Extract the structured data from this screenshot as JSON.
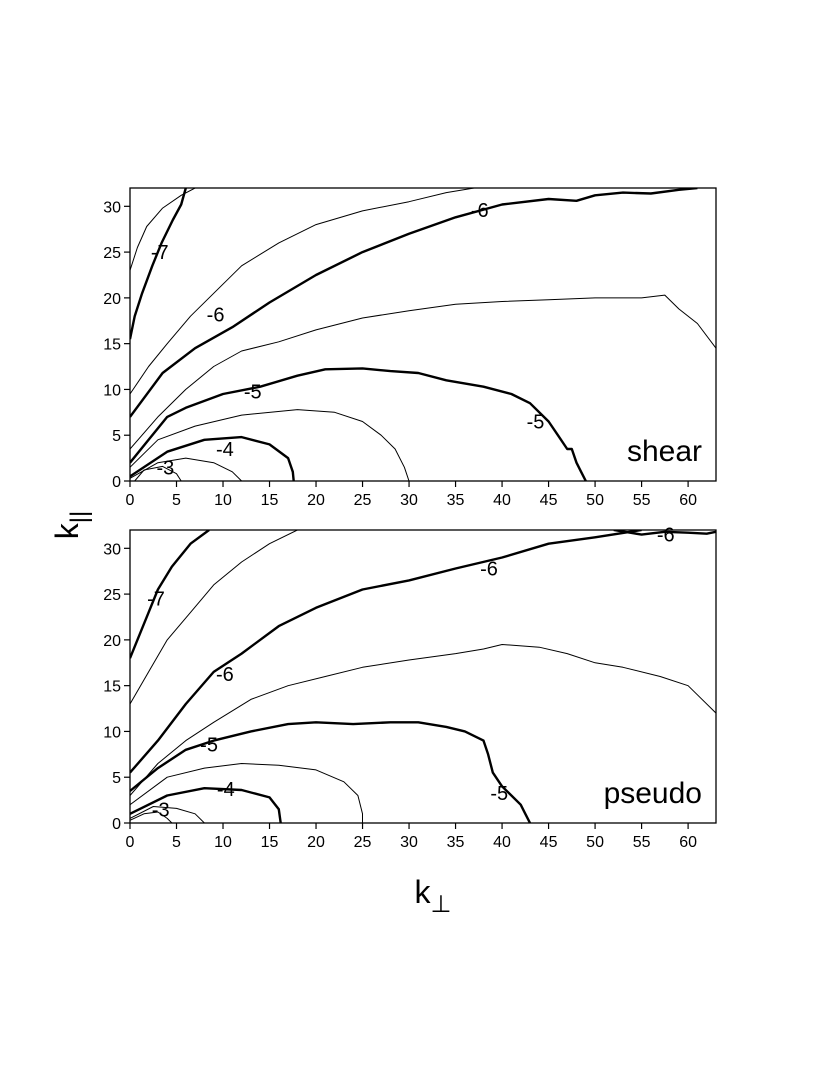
{
  "chart_data": [
    {
      "type": "contour",
      "panel_label": "shear",
      "xlim": [
        0,
        63
      ],
      "ylim": [
        0,
        32
      ],
      "x_ticks": [
        0,
        5,
        10,
        15,
        20,
        25,
        30,
        35,
        40,
        45,
        50,
        55,
        60
      ],
      "y_ticks": [
        0,
        5,
        10,
        15,
        20,
        25,
        30
      ],
      "contour_labels": [
        {
          "text": "-7",
          "x": 3.2,
          "y": 25.0
        },
        {
          "text": "-6",
          "x": 9.2,
          "y": 18.2
        },
        {
          "text": "-6",
          "x": 37.6,
          "y": 29.6
        },
        {
          "text": "-5",
          "x": 13.2,
          "y": 9.8
        },
        {
          "text": "-5",
          "x": 43.6,
          "y": 6.5
        },
        {
          "text": "-4",
          "x": 10.2,
          "y": 3.5
        },
        {
          "text": "-3",
          "x": 3.8,
          "y": 1.5
        }
      ],
      "contours": [
        {
          "level": "-7",
          "bold": false,
          "points": [
            [
              0,
              23
            ],
            [
              0.8,
              25.5
            ],
            [
              1.8,
              27.8
            ],
            [
              3.5,
              29.8
            ],
            [
              5.5,
              31.2
            ],
            [
              7,
              32
            ]
          ]
        },
        {
          "level": "-6.5",
          "bold": true,
          "points": [
            [
              0,
              15.5
            ],
            [
              0.5,
              18
            ],
            [
              1.3,
              20.5
            ],
            [
              2.4,
              23.5
            ],
            [
              3.4,
              26
            ],
            [
              4.6,
              28.5
            ],
            [
              5.5,
              30.2
            ],
            [
              6,
              32
            ]
          ]
        },
        {
          "level": "-6.5",
          "bold": false,
          "points": [
            [
              0,
              9.5
            ],
            [
              2,
              12.5
            ],
            [
              4,
              15
            ],
            [
              6.5,
              18
            ],
            [
              9,
              20.5
            ],
            [
              12,
              23.5
            ],
            [
              16,
              26
            ],
            [
              20,
              28
            ],
            [
              25,
              29.5
            ],
            [
              30,
              30.5
            ],
            [
              34,
              31.5
            ],
            [
              37,
              32
            ]
          ]
        },
        {
          "level": "-6",
          "bold": true,
          "points": [
            [
              0,
              7
            ],
            [
              3.5,
              11.8
            ],
            [
              7,
              14.5
            ],
            [
              11,
              16.8
            ],
            [
              15,
              19.5
            ],
            [
              20,
              22.5
            ],
            [
              25,
              25
            ],
            [
              30,
              27
            ],
            [
              35,
              28.8
            ],
            [
              40,
              30.2
            ],
            [
              45,
              30.8
            ],
            [
              48,
              30.6
            ],
            [
              50,
              31.2
            ],
            [
              53,
              31.5
            ],
            [
              56,
              31.4
            ],
            [
              59,
              31.8
            ],
            [
              61,
              32
            ]
          ]
        },
        {
          "level": "-5.5",
          "bold": false,
          "points": [
            [
              0,
              3.5
            ],
            [
              3,
              7
            ],
            [
              6,
              10
            ],
            [
              9,
              12.5
            ],
            [
              12,
              14.2
            ],
            [
              16,
              15.2
            ],
            [
              20,
              16.5
            ],
            [
              25,
              17.8
            ],
            [
              30,
              18.6
            ],
            [
              35,
              19.3
            ],
            [
              40,
              19.6
            ],
            [
              45,
              19.8
            ],
            [
              50,
              20
            ],
            [
              55,
              20
            ],
            [
              57.5,
              20.3
            ],
            [
              59,
              18.8
            ],
            [
              61,
              17.2
            ],
            [
              63,
              14.5
            ]
          ]
        },
        {
          "level": "-5",
          "bold": true,
          "points": [
            [
              0,
              2
            ],
            [
              2,
              4.5
            ],
            [
              4,
              7
            ],
            [
              6,
              8
            ],
            [
              10,
              9.5
            ],
            [
              14,
              10.3
            ],
            [
              18,
              11.5
            ],
            [
              21,
              12.2
            ],
            [
              25,
              12.3
            ],
            [
              28,
              12
            ],
            [
              31,
              11.8
            ],
            [
              34,
              11
            ],
            [
              38,
              10.3
            ],
            [
              41,
              9.5
            ],
            [
              43,
              8.5
            ],
            [
              45,
              6.5
            ],
            [
              46,
              5
            ],
            [
              47,
              3.5
            ],
            [
              47.5,
              3.5
            ],
            [
              48,
              2
            ],
            [
              48.5,
              1
            ],
            [
              49,
              0
            ]
          ]
        },
        {
          "level": "-4.5",
          "bold": false,
          "points": [
            [
              0,
              1.5
            ],
            [
              3,
              4.5
            ],
            [
              7,
              6
            ],
            [
              12,
              7.2
            ],
            [
              18,
              7.8
            ],
            [
              22,
              7.5
            ],
            [
              25,
              6.5
            ],
            [
              27,
              5
            ],
            [
              28.5,
              3.5
            ],
            [
              29.5,
              1.5
            ],
            [
              30,
              0
            ]
          ]
        },
        {
          "level": "-4",
          "bold": true,
          "points": [
            [
              0,
              0.5
            ],
            [
              4,
              3.2
            ],
            [
              8,
              4.5
            ],
            [
              12,
              4.8
            ],
            [
              15,
              4
            ],
            [
              17,
              2.5
            ],
            [
              17.5,
              1
            ],
            [
              17.6,
              0
            ]
          ]
        },
        {
          "level": "-3.5",
          "bold": false,
          "points": [
            [
              0,
              0.3
            ],
            [
              3,
              2
            ],
            [
              6,
              2.5
            ],
            [
              9,
              2
            ],
            [
              11,
              1
            ],
            [
              12,
              0
            ]
          ]
        },
        {
          "level": "-3",
          "bold": false,
          "points": [
            [
              0.5,
              0
            ],
            [
              1.5,
              1.2
            ],
            [
              3.5,
              1.6
            ],
            [
              5,
              0.8
            ],
            [
              5.5,
              0
            ]
          ]
        }
      ]
    },
    {
      "type": "contour",
      "panel_label": "pseudo",
      "xlim": [
        0,
        63
      ],
      "ylim": [
        0,
        32
      ],
      "x_ticks": [
        0,
        5,
        10,
        15,
        20,
        25,
        30,
        35,
        40,
        45,
        50,
        55,
        60
      ],
      "y_ticks": [
        0,
        5,
        10,
        15,
        20,
        25,
        30
      ],
      "contour_labels": [
        {
          "text": "-7",
          "x": 2.8,
          "y": 24.5
        },
        {
          "text": "-6",
          "x": 10.2,
          "y": 16.3
        },
        {
          "text": "-6",
          "x": 38.6,
          "y": 27.8
        },
        {
          "text": "-6",
          "x": 57.6,
          "y": 31.5
        },
        {
          "text": "-5",
          "x": 8.5,
          "y": 8.6
        },
        {
          "text": "-5",
          "x": 39.7,
          "y": 3.3
        },
        {
          "text": "-4",
          "x": 10.3,
          "y": 3.7
        },
        {
          "text": "-3",
          "x": 3.3,
          "y": 1.5
        }
      ],
      "contours": [
        {
          "level": "-7",
          "bold": true,
          "points": [
            [
              0,
              18
            ],
            [
              1,
              20.5
            ],
            [
              2,
              23
            ],
            [
              3,
              25.5
            ],
            [
              4.5,
              28
            ],
            [
              6.5,
              30.5
            ],
            [
              8.5,
              32
            ]
          ]
        },
        {
          "level": "-6.5",
          "bold": false,
          "points": [
            [
              0,
              13
            ],
            [
              2,
              16.5
            ],
            [
              4,
              20
            ],
            [
              6.5,
              23
            ],
            [
              9,
              26
            ],
            [
              12,
              28.5
            ],
            [
              15,
              30.5
            ],
            [
              18,
              32
            ]
          ]
        },
        {
          "level": "-6",
          "bold": true,
          "points": [
            [
              0,
              5.5
            ],
            [
              3,
              9
            ],
            [
              6,
              13
            ],
            [
              9,
              16.5
            ],
            [
              12,
              18.5
            ],
            [
              16,
              21.5
            ],
            [
              20,
              23.5
            ],
            [
              25,
              25.5
            ],
            [
              30,
              26.5
            ],
            [
              35,
              27.8
            ],
            [
              40,
              29
            ],
            [
              45,
              30.5
            ],
            [
              50,
              31.2
            ],
            [
              55,
              32
            ]
          ]
        },
        {
          "level": "-6",
          "bold": true,
          "points": [
            [
              52,
              32
            ],
            [
              55,
              31.5
            ],
            [
              57.5,
              31.8
            ],
            [
              60,
              31.7
            ],
            [
              62,
              31.6
            ],
            [
              63,
              31.8
            ]
          ]
        },
        {
          "level": "-5.5",
          "bold": false,
          "points": [
            [
              0,
              3
            ],
            [
              3,
              6.5
            ],
            [
              6,
              9
            ],
            [
              9,
              11
            ],
            [
              13,
              13.5
            ],
            [
              17,
              15
            ],
            [
              21,
              16
            ],
            [
              25,
              17
            ],
            [
              30,
              17.8
            ],
            [
              35,
              18.5
            ],
            [
              38,
              19
            ],
            [
              40,
              19.5
            ],
            [
              44,
              19.2
            ],
            [
              47,
              18.5
            ],
            [
              50,
              17.5
            ],
            [
              53,
              17
            ],
            [
              57,
              16
            ],
            [
              60,
              15
            ],
            [
              61,
              14
            ],
            [
              63,
              12
            ]
          ]
        },
        {
          "level": "-5",
          "bold": true,
          "points": [
            [
              0,
              3.5
            ],
            [
              3,
              6
            ],
            [
              6,
              8
            ],
            [
              9,
              9
            ],
            [
              13,
              10
            ],
            [
              17,
              10.8
            ],
            [
              20,
              11
            ],
            [
              24,
              10.8
            ],
            [
              28,
              11
            ],
            [
              31,
              11
            ],
            [
              34,
              10.5
            ],
            [
              36,
              10
            ],
            [
              38,
              9
            ],
            [
              38.5,
              7.5
            ],
            [
              39,
              5.5
            ],
            [
              40,
              4
            ],
            [
              41,
              3
            ],
            [
              42,
              2
            ],
            [
              42.5,
              1
            ],
            [
              43,
              0
            ]
          ]
        },
        {
          "level": "-4.5",
          "bold": false,
          "points": [
            [
              0,
              2
            ],
            [
              4,
              5
            ],
            [
              8,
              6
            ],
            [
              12,
              6.5
            ],
            [
              16,
              6.3
            ],
            [
              20,
              5.8
            ],
            [
              23,
              4.5
            ],
            [
              24.5,
              3
            ],
            [
              25,
              1
            ],
            [
              25,
              0
            ]
          ]
        },
        {
          "level": "-4",
          "bold": true,
          "points": [
            [
              0,
              1
            ],
            [
              4,
              3
            ],
            [
              8,
              3.8
            ],
            [
              12,
              3.6
            ],
            [
              15,
              2.8
            ],
            [
              16,
              1.5
            ],
            [
              16.2,
              0
            ]
          ]
        },
        {
          "level": "-3.5",
          "bold": false,
          "points": [
            [
              0,
              0.5
            ],
            [
              2.5,
              1.8
            ],
            [
              5,
              1.6
            ],
            [
              7,
              1
            ],
            [
              8,
              0
            ]
          ]
        },
        {
          "level": "-3",
          "bold": false,
          "points": [
            [
              0,
              0.3
            ],
            [
              1.5,
              1
            ],
            [
              3,
              1.2
            ],
            [
              4,
              0.5
            ],
            [
              4.5,
              0
            ]
          ]
        }
      ]
    }
  ],
  "y_axis_title": "k",
  "y_axis_subscript": "||",
  "x_axis_title": "k",
  "x_axis_subscript": "⊥"
}
